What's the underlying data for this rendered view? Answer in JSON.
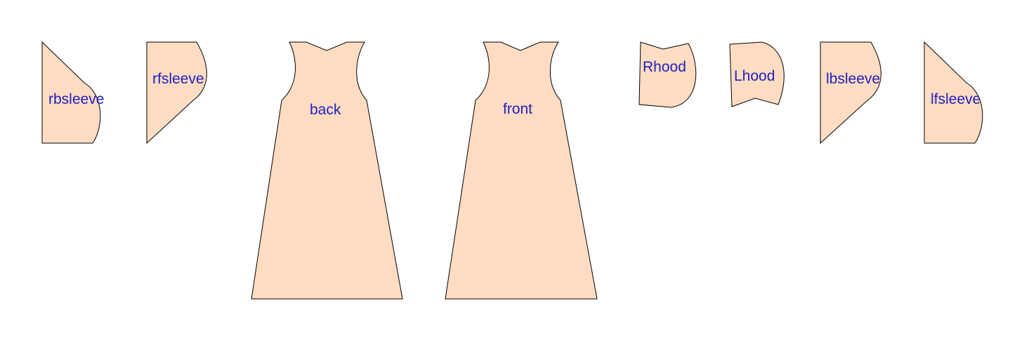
{
  "colors": {
    "piece_fill": "#ffdcc2",
    "piece_stroke": "#000000",
    "label_color": "#1f1fbf"
  },
  "pieces": [
    {
      "id": "rbsleeve",
      "label": "rbsleeve"
    },
    {
      "id": "rfsleeve",
      "label": "rfsleeve"
    },
    {
      "id": "back",
      "label": "back"
    },
    {
      "id": "front",
      "label": "front"
    },
    {
      "id": "rhood",
      "label": "Rhood"
    },
    {
      "id": "lhood",
      "label": "Lhood"
    },
    {
      "id": "lbsleeve",
      "label": "lbsleeve"
    },
    {
      "id": "lfsleeve",
      "label": "lfsleeve"
    }
  ]
}
